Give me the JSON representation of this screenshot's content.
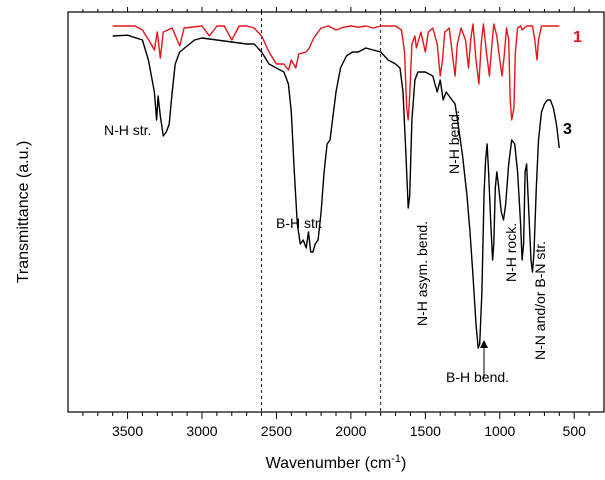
{
  "chart_data": {
    "type": "line",
    "xlabel": "Wavenumber (cm",
    "xlabel_sup": "-1",
    "xlabel_end": ")",
    "ylabel": "Transmittance (a.u.)",
    "x_reversed": true,
    "xlim": [
      3900,
      300
    ],
    "ylim": [
      0,
      1
    ],
    "x_ticks": [
      3500,
      3000,
      2500,
      2000,
      1500,
      1000,
      500
    ],
    "x_tick_labels": [
      "3500",
      "3000",
      "2500",
      "2000",
      "1500",
      "1000",
      "500"
    ],
    "grid": false,
    "reference_lines": [
      2600,
      1800
    ],
    "series": [
      {
        "name": "1",
        "color": "#e8141b",
        "points": [
          [
            3600,
            0.965
          ],
          [
            3450,
            0.965
          ],
          [
            3400,
            0.955
          ],
          [
            3350,
            0.925
          ],
          [
            3320,
            0.905
          ],
          [
            3300,
            0.95
          ],
          [
            3280,
            0.885
          ],
          [
            3260,
            0.95
          ],
          [
            3200,
            0.96
          ],
          [
            3150,
            0.915
          ],
          [
            3120,
            0.96
          ],
          [
            3000,
            0.965
          ],
          [
            2950,
            0.94
          ],
          [
            2900,
            0.965
          ],
          [
            2850,
            0.965
          ],
          [
            2800,
            0.93
          ],
          [
            2750,
            0.965
          ],
          [
            2700,
            0.965
          ],
          [
            2650,
            0.96
          ],
          [
            2600,
            0.94
          ],
          [
            2550,
            0.9
          ],
          [
            2500,
            0.87
          ],
          [
            2450,
            0.87
          ],
          [
            2420,
            0.855
          ],
          [
            2400,
            0.88
          ],
          [
            2370,
            0.86
          ],
          [
            2350,
            0.895
          ],
          [
            2300,
            0.9
          ],
          [
            2280,
            0.91
          ],
          [
            2250,
            0.935
          ],
          [
            2200,
            0.96
          ],
          [
            2150,
            0.965
          ],
          [
            2100,
            0.955
          ],
          [
            2050,
            0.962
          ],
          [
            2000,
            0.965
          ],
          [
            1950,
            0.962
          ],
          [
            1900,
            0.965
          ],
          [
            1850,
            0.96
          ],
          [
            1800,
            0.965
          ],
          [
            1700,
            0.965
          ],
          [
            1660,
            0.955
          ],
          [
            1640,
            0.9
          ],
          [
            1625,
            0.76
          ],
          [
            1615,
            0.73
          ],
          [
            1605,
            0.79
          ],
          [
            1590,
            0.92
          ],
          [
            1570,
            0.94
          ],
          [
            1560,
            0.91
          ],
          [
            1545,
            0.93
          ],
          [
            1530,
            0.95
          ],
          [
            1500,
            0.9
          ],
          [
            1480,
            0.95
          ],
          [
            1450,
            0.96
          ],
          [
            1420,
            0.92
          ],
          [
            1400,
            0.84
          ],
          [
            1385,
            0.88
          ],
          [
            1370,
            0.95
          ],
          [
            1340,
            0.96
          ],
          [
            1320,
            0.9
          ],
          [
            1300,
            0.84
          ],
          [
            1285,
            0.92
          ],
          [
            1260,
            0.96
          ],
          [
            1230,
            0.93
          ],
          [
            1210,
            0.86
          ],
          [
            1195,
            0.93
          ],
          [
            1180,
            0.97
          ],
          [
            1160,
            0.88
          ],
          [
            1140,
            0.82
          ],
          [
            1125,
            0.92
          ],
          [
            1110,
            0.97
          ],
          [
            1090,
            0.9
          ],
          [
            1070,
            0.84
          ],
          [
            1055,
            0.91
          ],
          [
            1040,
            0.97
          ],
          [
            1020,
            0.94
          ],
          [
            1000,
            0.88
          ],
          [
            985,
            0.84
          ],
          [
            970,
            0.89
          ],
          [
            955,
            0.96
          ],
          [
            940,
            0.93
          ],
          [
            930,
            0.78
          ],
          [
            920,
            0.73
          ],
          [
            905,
            0.76
          ],
          [
            895,
            0.9
          ],
          [
            880,
            0.96
          ],
          [
            860,
            0.965
          ],
          [
            850,
            0.955
          ],
          [
            820,
            0.965
          ],
          [
            780,
            0.965
          ],
          [
            765,
            0.93
          ],
          [
            750,
            0.88
          ],
          [
            740,
            0.93
          ],
          [
            720,
            0.965
          ],
          [
            600,
            0.965
          ]
        ]
      },
      {
        "name": "3",
        "color": "#000000",
        "points": [
          [
            3600,
            0.94
          ],
          [
            3500,
            0.942
          ],
          [
            3400,
            0.93
          ],
          [
            3360,
            0.88
          ],
          [
            3320,
            0.8
          ],
          [
            3305,
            0.73
          ],
          [
            3295,
            0.79
          ],
          [
            3280,
            0.74
          ],
          [
            3260,
            0.69
          ],
          [
            3240,
            0.7
          ],
          [
            3220,
            0.72
          ],
          [
            3200,
            0.8
          ],
          [
            3180,
            0.87
          ],
          [
            3150,
            0.9
          ],
          [
            3100,
            0.915
          ],
          [
            3050,
            0.93
          ],
          [
            3000,
            0.935
          ],
          [
            2900,
            0.93
          ],
          [
            2800,
            0.925
          ],
          [
            2700,
            0.92
          ],
          [
            2650,
            0.92
          ],
          [
            2600,
            0.9
          ],
          [
            2550,
            0.87
          ],
          [
            2500,
            0.86
          ],
          [
            2450,
            0.85
          ],
          [
            2420,
            0.82
          ],
          [
            2400,
            0.75
          ],
          [
            2380,
            0.6
          ],
          [
            2360,
            0.47
          ],
          [
            2340,
            0.42
          ],
          [
            2320,
            0.43
          ],
          [
            2300,
            0.41
          ],
          [
            2285,
            0.45
          ],
          [
            2270,
            0.4
          ],
          [
            2255,
            0.4
          ],
          [
            2240,
            0.42
          ],
          [
            2220,
            0.43
          ],
          [
            2200,
            0.5
          ],
          [
            2180,
            0.6
          ],
          [
            2160,
            0.67
          ],
          [
            2140,
            0.68
          ],
          [
            2120,
            0.74
          ],
          [
            2100,
            0.8
          ],
          [
            2070,
            0.86
          ],
          [
            2030,
            0.89
          ],
          [
            1990,
            0.9
          ],
          [
            1950,
            0.9
          ],
          [
            1900,
            0.91
          ],
          [
            1850,
            0.905
          ],
          [
            1800,
            0.9
          ],
          [
            1750,
            0.88
          ],
          [
            1700,
            0.87
          ],
          [
            1670,
            0.86
          ],
          [
            1650,
            0.8
          ],
          [
            1630,
            0.64
          ],
          [
            1615,
            0.51
          ],
          [
            1605,
            0.54
          ],
          [
            1590,
            0.73
          ],
          [
            1570,
            0.83
          ],
          [
            1550,
            0.85
          ],
          [
            1500,
            0.85
          ],
          [
            1450,
            0.84
          ],
          [
            1420,
            0.8
          ],
          [
            1400,
            0.83
          ],
          [
            1380,
            0.78
          ],
          [
            1360,
            0.8
          ],
          [
            1320,
            0.78
          ],
          [
            1300,
            0.77
          ],
          [
            1280,
            0.72
          ],
          [
            1250,
            0.64
          ],
          [
            1220,
            0.54
          ],
          [
            1200,
            0.45
          ],
          [
            1180,
            0.34
          ],
          [
            1160,
            0.22
          ],
          [
            1145,
            0.16
          ],
          [
            1135,
            0.17
          ],
          [
            1120,
            0.3
          ],
          [
            1105,
            0.55
          ],
          [
            1095,
            0.63
          ],
          [
            1085,
            0.67
          ],
          [
            1075,
            0.6
          ],
          [
            1060,
            0.47
          ],
          [
            1048,
            0.38
          ],
          [
            1040,
            0.42
          ],
          [
            1030,
            0.56
          ],
          [
            1020,
            0.6
          ],
          [
            1010,
            0.57
          ],
          [
            990,
            0.5
          ],
          [
            975,
            0.48
          ],
          [
            960,
            0.52
          ],
          [
            940,
            0.62
          ],
          [
            920,
            0.68
          ],
          [
            900,
            0.67
          ],
          [
            880,
            0.6
          ],
          [
            860,
            0.47
          ],
          [
            850,
            0.38
          ],
          [
            840,
            0.42
          ],
          [
            830,
            0.6
          ],
          [
            820,
            0.62
          ],
          [
            805,
            0.5
          ],
          [
            790,
            0.38
          ],
          [
            780,
            0.35
          ],
          [
            770,
            0.4
          ],
          [
            755,
            0.56
          ],
          [
            740,
            0.68
          ],
          [
            720,
            0.75
          ],
          [
            700,
            0.77
          ],
          [
            680,
            0.78
          ],
          [
            660,
            0.78
          ],
          [
            640,
            0.76
          ],
          [
            620,
            0.72
          ],
          [
            600,
            0.66
          ]
        ]
      }
    ],
    "annotations": [
      {
        "id": "nh-str",
        "text": "N-H str."
      },
      {
        "id": "bh-str",
        "text": "B-H str."
      },
      {
        "id": "nh-asym-bend",
        "text": "N-H asym. bend."
      },
      {
        "id": "nh-bend",
        "text": "N-H bend."
      },
      {
        "id": "nh-rock",
        "text": "N-H rock."
      },
      {
        "id": "nn-bn-str",
        "text": "N-N and/or B-N str."
      },
      {
        "id": "bh-bend",
        "text": "B-H bend."
      }
    ]
  }
}
